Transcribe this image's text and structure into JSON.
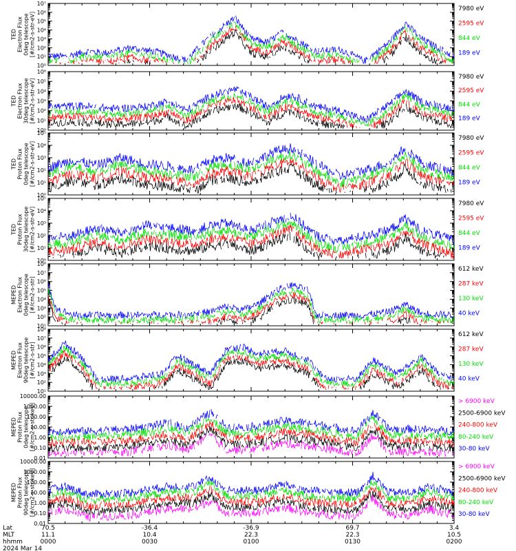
{
  "colors": {
    "black": "#000000",
    "red": "#ff0000",
    "green": "#00e000",
    "blue": "#0000ff",
    "magenta": "#ff00ff"
  },
  "time": {
    "labels": [
      "0000",
      "0030",
      "0100",
      "0130",
      "0200"
    ],
    "row_labels": [
      "Lat",
      "MLT",
      "hhmm"
    ],
    "lat": [
      "70.5",
      "-36.4",
      "-36.9",
      "69.7",
      "3.4"
    ],
    "mlt": [
      "11.1",
      "10.4",
      "22.3",
      "22.3",
      "10.5"
    ],
    "date": "2024 Mar 14"
  },
  "chart_data": [
    {
      "type": "line",
      "ylabel": [
        "TED",
        "Electron Flux",
        "0deg telescope",
        "[#/cm2-s-str-eV]"
      ],
      "yscale": "log",
      "ylim_exp": [
        0,
        7
      ],
      "yticks": [
        "10⁰",
        "10¹",
        "10²",
        "10³",
        "10⁴",
        "10⁵",
        "10⁶",
        "10⁷"
      ],
      "series": [
        {
          "name": "7980 eV",
          "color": "#000000"
        },
        {
          "name": "2595 eV",
          "color": "#ff0000"
        },
        {
          "name": "844 eV",
          "color": "#00e000"
        },
        {
          "name": "189 eV",
          "color": "#0000ff"
        }
      ],
      "profile": [
        [
          0,
          1.1
        ],
        [
          0.04,
          1.0
        ],
        [
          0.1,
          1.6
        ],
        [
          0.14,
          1.4
        ],
        [
          0.2,
          2.0
        ],
        [
          0.27,
          1.5
        ],
        [
          0.34,
          0.6
        ],
        [
          0.4,
          3.3
        ],
        [
          0.46,
          5.4
        ],
        [
          0.5,
          3.0
        ],
        [
          0.54,
          2.6
        ],
        [
          0.58,
          3.8
        ],
        [
          0.6,
          3.2
        ],
        [
          0.66,
          1.6
        ],
        [
          0.72,
          1.8
        ],
        [
          0.78,
          0.5
        ],
        [
          0.84,
          2.6
        ],
        [
          0.88,
          4.8
        ],
        [
          0.92,
          3.0
        ],
        [
          1.0,
          1.0
        ]
      ]
    },
    {
      "type": "line",
      "ylabel": [
        "TED",
        "Electron Flux",
        "30deg telescope",
        "[#/cm2-s-str-eV]"
      ],
      "yscale": "log",
      "ylim_exp": [
        0,
        6
      ],
      "yticks": [
        "10⁰",
        "10¹",
        "10²",
        "10³",
        "10⁴",
        "10⁵",
        "10⁶"
      ],
      "series": [
        {
          "name": "7980 eV",
          "color": "#000000"
        },
        {
          "name": "2595 eV",
          "color": "#ff0000"
        },
        {
          "name": "844 eV",
          "color": "#00e000"
        },
        {
          "name": "189 eV",
          "color": "#0000ff"
        }
      ],
      "profile": [
        [
          0,
          2.4
        ],
        [
          0.08,
          2.5
        ],
        [
          0.16,
          2.2
        ],
        [
          0.24,
          2.4
        ],
        [
          0.3,
          3.0
        ],
        [
          0.34,
          2.0
        ],
        [
          0.4,
          3.5
        ],
        [
          0.46,
          4.2
        ],
        [
          0.5,
          3.4
        ],
        [
          0.54,
          2.4
        ],
        [
          0.58,
          3.4
        ],
        [
          0.6,
          3.6
        ],
        [
          0.66,
          2.4
        ],
        [
          0.72,
          2.0
        ],
        [
          0.78,
          1.0
        ],
        [
          0.84,
          2.6
        ],
        [
          0.88,
          4.0
        ],
        [
          0.92,
          2.9
        ],
        [
          1.0,
          2.2
        ]
      ]
    },
    {
      "type": "line",
      "ylabel": [
        "TED",
        "Proton Flux",
        "0deg telescope",
        "[#/cm2-s-str-eV]"
      ],
      "yscale": "log",
      "ylim_exp": [
        0,
        5
      ],
      "yticks": [
        "10⁰",
        "10¹",
        "10²",
        "10³",
        "10⁴",
        "10⁵"
      ],
      "series": [
        {
          "name": "7980 eV",
          "color": "#000000"
        },
        {
          "name": "2595 eV",
          "color": "#ff0000"
        },
        {
          "name": "844 eV",
          "color": "#00e000"
        },
        {
          "name": "189 eV",
          "color": "#0000ff"
        }
      ],
      "profile": [
        [
          0,
          2.2
        ],
        [
          0.06,
          2.8
        ],
        [
          0.12,
          2.4
        ],
        [
          0.18,
          3.0
        ],
        [
          0.24,
          2.5
        ],
        [
          0.3,
          2.3
        ],
        [
          0.36,
          2.0
        ],
        [
          0.4,
          2.8
        ],
        [
          0.44,
          3.0
        ],
        [
          0.5,
          2.6
        ],
        [
          0.56,
          3.5
        ],
        [
          0.6,
          3.8
        ],
        [
          0.66,
          2.5
        ],
        [
          0.72,
          1.5
        ],
        [
          0.78,
          2.0
        ],
        [
          0.84,
          2.6
        ],
        [
          0.88,
          3.8
        ],
        [
          0.92,
          2.6
        ],
        [
          1.0,
          1.8
        ]
      ]
    },
    {
      "type": "line",
      "ylabel": [
        "TED",
        "Proton Flux",
        "30deg telescope",
        "[#/cm2-s-str-eV]"
      ],
      "yscale": "log",
      "ylim_exp": [
        0,
        5
      ],
      "yticks": [
        "10⁰",
        "10¹",
        "10²",
        "10³",
        "10⁴",
        "10⁵"
      ],
      "series": [
        {
          "name": "7980 eV",
          "color": "#000000"
        },
        {
          "name": "2595 eV",
          "color": "#ff0000"
        },
        {
          "name": "844 eV",
          "color": "#00e000"
        },
        {
          "name": "189 eV",
          "color": "#0000ff"
        }
      ],
      "profile": [
        [
          0,
          1.8
        ],
        [
          0.06,
          2.0
        ],
        [
          0.12,
          2.6
        ],
        [
          0.18,
          2.2
        ],
        [
          0.24,
          2.8
        ],
        [
          0.3,
          2.6
        ],
        [
          0.36,
          2.4
        ],
        [
          0.4,
          2.8
        ],
        [
          0.44,
          3.0
        ],
        [
          0.5,
          2.4
        ],
        [
          0.56,
          3.2
        ],
        [
          0.6,
          3.6
        ],
        [
          0.66,
          2.0
        ],
        [
          0.72,
          1.5
        ],
        [
          0.78,
          2.0
        ],
        [
          0.84,
          2.4
        ],
        [
          0.88,
          3.4
        ],
        [
          0.92,
          2.4
        ],
        [
          1.0,
          1.6
        ]
      ]
    },
    {
      "type": "line",
      "ylabel": [
        "MEPED",
        "Electron Flux",
        "0deg telescope",
        "[#/cm2-s-str]"
      ],
      "yscale": "log",
      "ylim_exp": [
        1,
        8
      ],
      "yticks": [
        "10¹",
        "10²",
        "10³",
        "10⁴",
        "10⁵",
        "10⁶",
        "10⁷",
        "10⁸"
      ],
      "series": [
        {
          "name": "612 keV",
          "color": "#000000"
        },
        {
          "name": "287 keV",
          "color": "#ff0000"
        },
        {
          "name": "130 keV",
          "color": "#00e000"
        },
        {
          "name": "40 keV",
          "color": "#0000ff"
        }
      ],
      "profile": [
        [
          0,
          5.5
        ],
        [
          0.02,
          3.0
        ],
        [
          0.06,
          2.2
        ],
        [
          0.2,
          2.2
        ],
        [
          0.34,
          2.3
        ],
        [
          0.4,
          2.6
        ],
        [
          0.44,
          3.2
        ],
        [
          0.48,
          2.8
        ],
        [
          0.52,
          3.5
        ],
        [
          0.56,
          5.0
        ],
        [
          0.6,
          5.6
        ],
        [
          0.64,
          5.0
        ],
        [
          0.66,
          2.2
        ],
        [
          0.72,
          2.2
        ],
        [
          0.78,
          2.2
        ],
        [
          0.84,
          2.6
        ],
        [
          0.88,
          3.4
        ],
        [
          0.92,
          2.4
        ],
        [
          1.0,
          2.2
        ]
      ]
    },
    {
      "type": "line",
      "ylabel": [
        "MEPED",
        "Electron Flux",
        "90deg telescope",
        "[#/cm2-s-str]"
      ],
      "yscale": "log",
      "ylim_exp": [
        1,
        8
      ],
      "yticks": [
        "10¹",
        "10²",
        "10³",
        "10⁴",
        "10⁵",
        "10⁶",
        "10⁷",
        "10⁸"
      ],
      "series": [
        {
          "name": "612 keV",
          "color": "#000000"
        },
        {
          "name": "287 keV",
          "color": "#ff0000"
        },
        {
          "name": "130 keV",
          "color": "#00e000"
        },
        {
          "name": "40 keV",
          "color": "#0000ff"
        }
      ],
      "profile": [
        [
          0,
          4.5
        ],
        [
          0.04,
          6.4
        ],
        [
          0.08,
          5.0
        ],
        [
          0.12,
          2.4
        ],
        [
          0.2,
          2.4
        ],
        [
          0.28,
          3.0
        ],
        [
          0.32,
          5.0
        ],
        [
          0.36,
          4.0
        ],
        [
          0.4,
          3.0
        ],
        [
          0.44,
          5.8
        ],
        [
          0.48,
          6.0
        ],
        [
          0.52,
          5.2
        ],
        [
          0.58,
          5.6
        ],
        [
          0.64,
          4.6
        ],
        [
          0.68,
          2.4
        ],
        [
          0.76,
          2.4
        ],
        [
          0.8,
          4.5
        ],
        [
          0.86,
          3.0
        ],
        [
          0.92,
          5.0
        ],
        [
          0.96,
          3.0
        ],
        [
          1.0,
          2.4
        ]
      ]
    },
    {
      "type": "line",
      "ylabel": [
        "MEPED",
        "Proton Flux",
        "0deg telescope",
        "[#/cm2-s-str-keV]"
      ],
      "yscale": "log",
      "ylim_exp": [
        -2,
        4
      ],
      "yticks": [
        "0.01",
        "0.10",
        "1.00",
        "10.00",
        "100.00",
        "1000.00",
        "10000.00"
      ],
      "series": [
        {
          "name": "> 6900 keV",
          "color": "#ff00ff"
        },
        {
          "name": "2500-6900 keV",
          "color": "#000000"
        },
        {
          "name": "240-800 keV",
          "color": "#ff0000"
        },
        {
          "name": "80-240 keV",
          "color": "#00e000"
        },
        {
          "name": "30-80 keV",
          "color": "#0000ff"
        }
      ],
      "profile": [
        [
          0,
          0.6
        ],
        [
          0.1,
          0.6
        ],
        [
          0.2,
          0.8
        ],
        [
          0.3,
          1.4
        ],
        [
          0.34,
          0.9
        ],
        [
          0.4,
          2.4
        ],
        [
          0.44,
          1.0
        ],
        [
          0.5,
          1.0
        ],
        [
          0.58,
          1.6
        ],
        [
          0.64,
          1.4
        ],
        [
          0.7,
          1.0
        ],
        [
          0.76,
          0.6
        ],
        [
          0.8,
          2.4
        ],
        [
          0.84,
          0.8
        ],
        [
          0.9,
          0.8
        ],
        [
          1.0,
          0.6
        ]
      ]
    },
    {
      "type": "line",
      "ylabel": [
        "MEPED",
        "Proton Flux",
        "90deg telescope",
        "[#/cm2-s-str-keV]"
      ],
      "yscale": "log",
      "ylim_exp": [
        -2,
        4
      ],
      "yticks": [
        "0.01",
        "0.10",
        "1.00",
        "10.00",
        "100.00",
        "1000.00",
        "10000.00"
      ],
      "series": [
        {
          "name": "> 6900 keV",
          "color": "#ff00ff"
        },
        {
          "name": "2500-6900 keV",
          "color": "#000000"
        },
        {
          "name": "240-800 keV",
          "color": "#ff0000"
        },
        {
          "name": "80-240 keV",
          "color": "#00e000"
        },
        {
          "name": "30-80 keV",
          "color": "#0000ff"
        }
      ],
      "profile": [
        [
          0,
          1.2
        ],
        [
          0.04,
          1.6
        ],
        [
          0.1,
          0.8
        ],
        [
          0.2,
          1.0
        ],
        [
          0.3,
          1.6
        ],
        [
          0.36,
          1.6
        ],
        [
          0.4,
          2.4
        ],
        [
          0.44,
          1.2
        ],
        [
          0.52,
          1.2
        ],
        [
          0.58,
          1.8
        ],
        [
          0.64,
          1.2
        ],
        [
          0.7,
          1.0
        ],
        [
          0.76,
          1.0
        ],
        [
          0.8,
          2.6
        ],
        [
          0.84,
          1.0
        ],
        [
          0.9,
          1.0
        ],
        [
          0.94,
          1.6
        ],
        [
          1.0,
          1.0
        ]
      ]
    }
  ]
}
